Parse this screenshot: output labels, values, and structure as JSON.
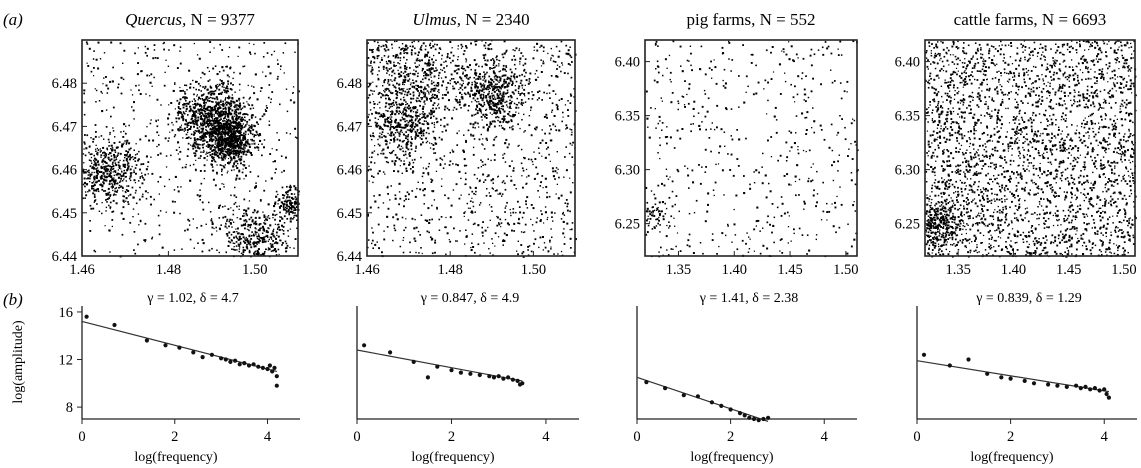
{
  "panel_labels": {
    "a": "(a)",
    "b": "(b)"
  },
  "chart_data": [
    {
      "type": "scatter",
      "panel": "a",
      "title_italic": "Quercus,",
      "title_rest": " N = 9377",
      "xlim": [
        1.46,
        1.51
      ],
      "ylim": [
        6.44,
        6.49
      ],
      "xticks": [
        "1.46",
        "1.48",
        "1.50"
      ],
      "xtick_values": [
        1.46,
        1.48,
        1.5
      ],
      "yticks": [
        "6.44",
        "6.45",
        "6.46",
        "6.47",
        "6.48"
      ],
      "ytick_values": [
        6.44,
        6.45,
        6.46,
        6.47,
        6.48
      ],
      "n_points": 9377,
      "point_color": "#000000",
      "clusters": [
        [
          1.49,
          6.472,
          0.004,
          0.3
        ],
        [
          1.494,
          6.467,
          0.003,
          0.2
        ],
        [
          1.466,
          6.46,
          0.004,
          0.15
        ],
        [
          1.5,
          6.444,
          0.004,
          0.12
        ],
        [
          1.508,
          6.452,
          0.002,
          0.06
        ]
      ]
    },
    {
      "type": "scatter",
      "panel": "a",
      "title_italic": "Ulmus,",
      "title_rest": " N = 2340",
      "xlim": [
        1.46,
        1.51
      ],
      "ylim": [
        6.44,
        6.49
      ],
      "xticks": [
        "1.46",
        "1.48",
        "1.50"
      ],
      "xtick_values": [
        1.46,
        1.48,
        1.5
      ],
      "yticks": [
        "6.44",
        "6.45",
        "6.46",
        "6.47",
        "6.48"
      ],
      "ytick_values": [
        6.44,
        6.45,
        6.46,
        6.47,
        6.48
      ],
      "n_points": 2340,
      "point_color": "#000000",
      "clusters": [
        [
          1.49,
          6.478,
          0.004,
          0.2
        ],
        [
          1.47,
          6.482,
          0.006,
          0.2
        ],
        [
          1.468,
          6.47,
          0.004,
          0.15
        ]
      ]
    },
    {
      "type": "scatter",
      "panel": "a",
      "title_italic": "",
      "title_rest": "pig farms, N = 552",
      "xlim": [
        1.32,
        1.51
      ],
      "ylim": [
        6.22,
        6.42
      ],
      "xticks": [
        "1.35",
        "1.40",
        "1.45",
        "1.50"
      ],
      "xtick_values": [
        1.35,
        1.4,
        1.45,
        1.5
      ],
      "yticks": [
        "6.25",
        "6.30",
        "6.35",
        "6.40"
      ],
      "ytick_values": [
        6.25,
        6.3,
        6.35,
        6.4
      ],
      "n_points": 552,
      "point_color": "#000000",
      "clusters": [
        [
          1.33,
          6.26,
          0.008,
          0.12
        ]
      ]
    },
    {
      "type": "scatter",
      "panel": "a",
      "title_italic": "",
      "title_rest": "cattle farms, N = 6693",
      "xlim": [
        1.32,
        1.51
      ],
      "ylim": [
        6.22,
        6.42
      ],
      "xticks": [
        "1.35",
        "1.40",
        "1.45",
        "1.50"
      ],
      "xtick_values": [
        1.35,
        1.4,
        1.45,
        1.5
      ],
      "yticks": [
        "6.25",
        "6.30",
        "6.35",
        "6.40"
      ],
      "ytick_values": [
        6.25,
        6.3,
        6.35,
        6.4
      ],
      "n_points": 6693,
      "point_color": "#000000",
      "clusters": [
        [
          1.33,
          6.25,
          0.012,
          0.1
        ]
      ]
    },
    {
      "type": "scatter",
      "panel": "b",
      "annotation": "γ = 1.02, δ = 4.7",
      "xlabel": "log(frequency)",
      "ylabel": "log(amplitude)",
      "xlim": [
        0,
        4.7
      ],
      "ylim": [
        7,
        16.5
      ],
      "xticks": [
        "0",
        "2",
        "4"
      ],
      "xtick_values": [
        0,
        2,
        4
      ],
      "yticks": [
        "8",
        "12",
        "16"
      ],
      "ytick_values": [
        8,
        12,
        16
      ],
      "gamma": 1.02,
      "delta": 4.7,
      "fit_line": {
        "x": [
          0,
          4.2
        ],
        "y": [
          15.2,
          11.0
        ]
      },
      "points": {
        "x": [
          0.1,
          0.7,
          1.4,
          1.8,
          2.1,
          2.4,
          2.6,
          2.8,
          3.0,
          3.1,
          3.2,
          3.3,
          3.4,
          3.5,
          3.6,
          3.7,
          3.8,
          3.9,
          4.0,
          4.05,
          4.1,
          4.15,
          4.2,
          4.2
        ],
        "y": [
          15.6,
          14.9,
          13.6,
          13.2,
          13.0,
          12.6,
          12.2,
          12.4,
          12.1,
          12.0,
          11.8,
          11.9,
          11.6,
          11.7,
          11.5,
          11.6,
          11.4,
          11.3,
          11.2,
          11.5,
          11.0,
          11.3,
          10.6,
          9.8
        ]
      }
    },
    {
      "type": "scatter",
      "panel": "b",
      "annotation": "γ = 0.847, δ = 4.9",
      "xlabel": "log(frequency)",
      "xlim": [
        0,
        4.7
      ],
      "ylim": [
        7,
        16.5
      ],
      "xticks": [
        "0",
        "2",
        "4"
      ],
      "xtick_values": [
        0,
        2,
        4
      ],
      "gamma": 0.847,
      "delta": 4.9,
      "fit_line": {
        "x": [
          0,
          3.5
        ],
        "y": [
          12.8,
          10.2
        ]
      },
      "points": {
        "x": [
          0.15,
          0.7,
          1.2,
          1.5,
          1.7,
          2.0,
          2.2,
          2.4,
          2.6,
          2.8,
          2.9,
          3.0,
          3.1,
          3.2,
          3.3,
          3.4,
          3.45,
          3.5
        ],
        "y": [
          13.2,
          12.6,
          11.8,
          10.5,
          11.4,
          11.1,
          10.9,
          10.8,
          10.7,
          10.6,
          10.5,
          10.6,
          10.4,
          10.5,
          10.3,
          10.2,
          9.9,
          10.0
        ]
      }
    },
    {
      "type": "scatter",
      "panel": "b",
      "annotation": "γ = 1.41, δ = 2.38",
      "xlabel": "log(frequency)",
      "xlim": [
        0,
        4.7
      ],
      "ylim": [
        7,
        16.5
      ],
      "xticks": [
        "0",
        "2",
        "4"
      ],
      "xtick_values": [
        0,
        2,
        4
      ],
      "gamma": 1.41,
      "delta": 2.38,
      "fit_line": {
        "x": [
          0,
          2.8
        ],
        "y": [
          10.5,
          6.8
        ]
      },
      "points": {
        "x": [
          0.2,
          0.6,
          1.0,
          1.3,
          1.6,
          1.8,
          2.0,
          2.2,
          2.3,
          2.4,
          2.5,
          2.6,
          2.7,
          2.8
        ],
        "y": [
          10.1,
          9.6,
          9.0,
          8.9,
          8.4,
          8.1,
          7.8,
          7.5,
          7.3,
          7.1,
          7.0,
          6.9,
          7.0,
          7.1
        ]
      }
    },
    {
      "type": "scatter",
      "panel": "b",
      "annotation": "γ = 0.839, δ = 1.29",
      "xlabel": "log(frequency)",
      "xlim": [
        0,
        4.7
      ],
      "ylim": [
        7,
        16.5
      ],
      "xticks": [
        "0",
        "2",
        "4"
      ],
      "xtick_values": [
        0,
        2,
        4
      ],
      "gamma": 0.839,
      "delta": 1.29,
      "fit_line": {
        "x": [
          0,
          4.1
        ],
        "y": [
          11.9,
          9.3
        ]
      },
      "points": {
        "x": [
          0.15,
          0.7,
          1.1,
          1.5,
          1.8,
          2.0,
          2.3,
          2.5,
          2.8,
          3.0,
          3.2,
          3.4,
          3.5,
          3.6,
          3.7,
          3.8,
          3.9,
          4.0,
          4.05,
          4.1
        ],
        "y": [
          12.4,
          11.5,
          12.0,
          10.8,
          10.5,
          10.4,
          10.2,
          10.0,
          9.9,
          9.8,
          9.7,
          9.8,
          9.6,
          9.7,
          9.5,
          9.6,
          9.4,
          9.5,
          9.1,
          8.8
        ]
      }
    }
  ]
}
